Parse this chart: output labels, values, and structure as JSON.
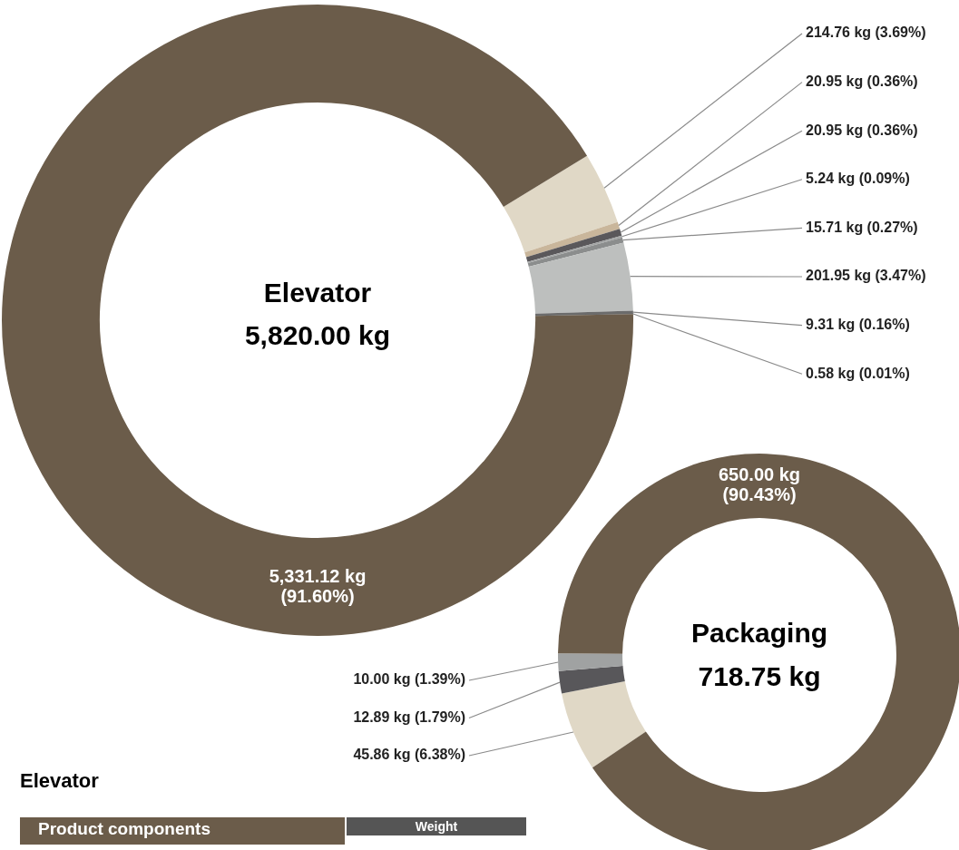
{
  "chart_data": [
    {
      "type": "donut",
      "title": "Elevator",
      "subtitle": "5,820.00 kg",
      "categories": [
        null,
        null,
        null,
        null,
        null,
        null,
        null,
        null,
        null
      ],
      "values": [
        214.76,
        20.95,
        20.95,
        5.24,
        15.71,
        201.95,
        9.31,
        0.58,
        5331.12
      ],
      "colors": [
        "#e0d8c6",
        "#c9b69b",
        "#5a585b",
        "#a3a5a5",
        "#8b8d8d",
        "#bdbfbe",
        "#6b6b6b",
        "#000000",
        "#6b5c4a"
      ],
      "value_labels": [
        "214.76 kg (3.69%)",
        "20.95 kg (0.36%)",
        "20.95 kg (0.36%)",
        "5.24 kg (0.09%)",
        "15.71 kg (0.27%)",
        "201.95 kg (3.47%)",
        "9.31 kg (0.16%)",
        "0.58 kg (0.01%)",
        "5,331.12 kg (91.60%)"
      ]
    },
    {
      "type": "donut",
      "title": "Packaging",
      "subtitle": "718.75 kg",
      "categories": [
        null,
        null,
        null,
        null
      ],
      "values": [
        45.86,
        12.89,
        10.0,
        650.0
      ],
      "colors": [
        "#e0d8c6",
        "#58575a",
        "#a0a2a2",
        "#6b5c4a"
      ],
      "value_labels": [
        "45.86 kg (6.38%)",
        "12.89 kg (1.79%)",
        "10.00 kg (1.39%)",
        "650.00 kg (90.43%)"
      ]
    },
    {
      "type": "other",
      "title": "Elevator",
      "annotations": [
        "Product components",
        "Weight"
      ]
    }
  ]
}
